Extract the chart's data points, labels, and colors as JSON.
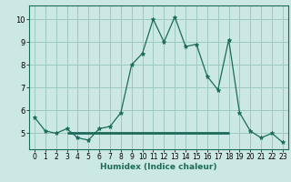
{
  "x": [
    0,
    1,
    2,
    3,
    4,
    5,
    6,
    7,
    8,
    9,
    10,
    11,
    12,
    13,
    14,
    15,
    16,
    17,
    18,
    19,
    20,
    21,
    22,
    23
  ],
  "y": [
    5.7,
    5.1,
    5.0,
    5.2,
    4.8,
    4.7,
    5.2,
    5.3,
    5.9,
    8.0,
    8.5,
    10.0,
    9.0,
    10.1,
    8.8,
    8.9,
    7.5,
    6.9,
    9.1,
    5.9,
    5.1,
    4.8,
    5.0,
    4.6
  ],
  "line_color": "#1a6b5a",
  "marker": "*",
  "marker_size": 3.5,
  "bg_color": "#cce8e4",
  "grid_color": "#9dc8c2",
  "xlabel": "Humidex (Indice chaleur)",
  "ylim": [
    4.3,
    10.6
  ],
  "xlim": [
    -0.5,
    23.5
  ],
  "yticks": [
    5,
    6,
    7,
    8,
    9,
    10
  ],
  "xticks": [
    0,
    1,
    2,
    3,
    4,
    5,
    6,
    7,
    8,
    9,
    10,
    11,
    12,
    13,
    14,
    15,
    16,
    17,
    18,
    19,
    20,
    21,
    22,
    23
  ],
  "hline_y": 5.0,
  "hline_xstart": 3,
  "hline_xend": 18
}
